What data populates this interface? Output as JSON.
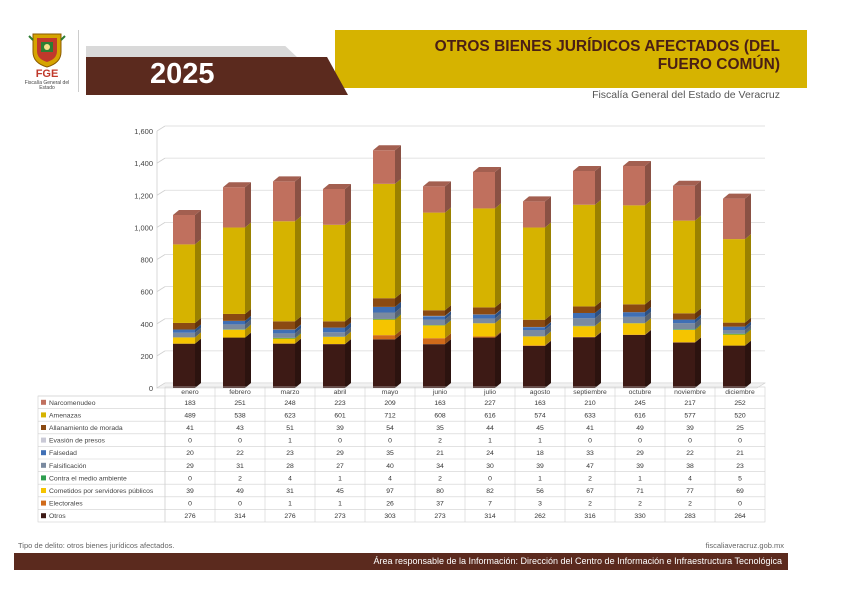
{
  "header": {
    "logo_text": "FGE",
    "logo_subtext": "Fiscalía General del Estado",
    "year": "2025",
    "title": "OTROS BIENES JURÍDICOS AFECTADOS (DEL FUERO COMÚN)",
    "subtitle": "Fiscalía General del Estado de Veracruz"
  },
  "footer": {
    "note": "Tipo de delito: otros bienes jurídicos afectados.",
    "website": "fiscaliaveracruz.gob.mx",
    "responsible": "Área responsable de la Información: Dirección del Centro de Información e Infraestructura Tecnológica"
  },
  "colors": {
    "gold": "#d6b300",
    "brown": "#5b2a1e"
  },
  "chart_data": {
    "type": "bar",
    "stacked": true,
    "style": "3d",
    "ylim": [
      0,
      1600
    ],
    "yticks": [
      "0",
      "200",
      "400",
      "600",
      "800",
      "1,000",
      "1,200",
      "1,400",
      "1,600"
    ],
    "categories": [
      "enero",
      "febrero",
      "marzo",
      "abril",
      "mayo",
      "junio",
      "julio",
      "agosto",
      "septiembre",
      "octubre",
      "noviembre",
      "diciembre"
    ],
    "series": [
      {
        "name": "Otros",
        "color": "#3d1a15",
        "values": [
          276,
          314,
          276,
          273,
          303,
          273,
          314,
          262,
          316,
          330,
          283,
          264
        ]
      },
      {
        "name": "Electorales",
        "color": "#d06a1a",
        "values": [
          0,
          0,
          1,
          1,
          26,
          37,
          7,
          3,
          2,
          2,
          2,
          0
        ]
      },
      {
        "name": "Cometidos por servidores públicos",
        "color": "#f5c400",
        "values": [
          39,
          49,
          31,
          45,
          97,
          80,
          82,
          56,
          67,
          71,
          77,
          69
        ]
      },
      {
        "name": "Contra el medio ambiente",
        "color": "#2e9e4f",
        "values": [
          0,
          2,
          4,
          1,
          4,
          2,
          0,
          1,
          2,
          1,
          4,
          5
        ]
      },
      {
        "name": "Falsificación",
        "color": "#7a8aa0",
        "values": [
          29,
          31,
          28,
          27,
          40,
          34,
          30,
          39,
          47,
          39,
          38,
          23
        ]
      },
      {
        "name": "Falsedad",
        "color": "#3f6fb5",
        "values": [
          20,
          22,
          23,
          29,
          35,
          21,
          24,
          18,
          33,
          29,
          22,
          21
        ]
      },
      {
        "name": "Evasión de presos",
        "color": "#c9c9d6",
        "values": [
          0,
          0,
          1,
          0,
          0,
          2,
          1,
          1,
          0,
          0,
          0,
          0
        ]
      },
      {
        "name": "Allanamiento de morada",
        "color": "#8b4a12",
        "values": [
          41,
          43,
          51,
          39,
          54,
          35,
          44,
          45,
          41,
          49,
          39,
          25
        ]
      },
      {
        "name": "Amenazas",
        "color": "#d6b300",
        "values": [
          489,
          538,
          623,
          601,
          712,
          608,
          616,
          574,
          633,
          616,
          577,
          520
        ]
      },
      {
        "name": "Narcomenudeo",
        "color": "#c0705e",
        "values": [
          183,
          251,
          248,
          223,
          209,
          163,
          227,
          163,
          210,
          245,
          217,
          252
        ]
      }
    ],
    "table_order": [
      "Narcomenudeo",
      "Amenazas",
      "Allanamiento de morada",
      "Evasión de presos",
      "Falsedad",
      "Falsificación",
      "Contra el medio ambiente",
      "Cometidos por servidores públicos",
      "Electorales",
      "Otros"
    ]
  }
}
